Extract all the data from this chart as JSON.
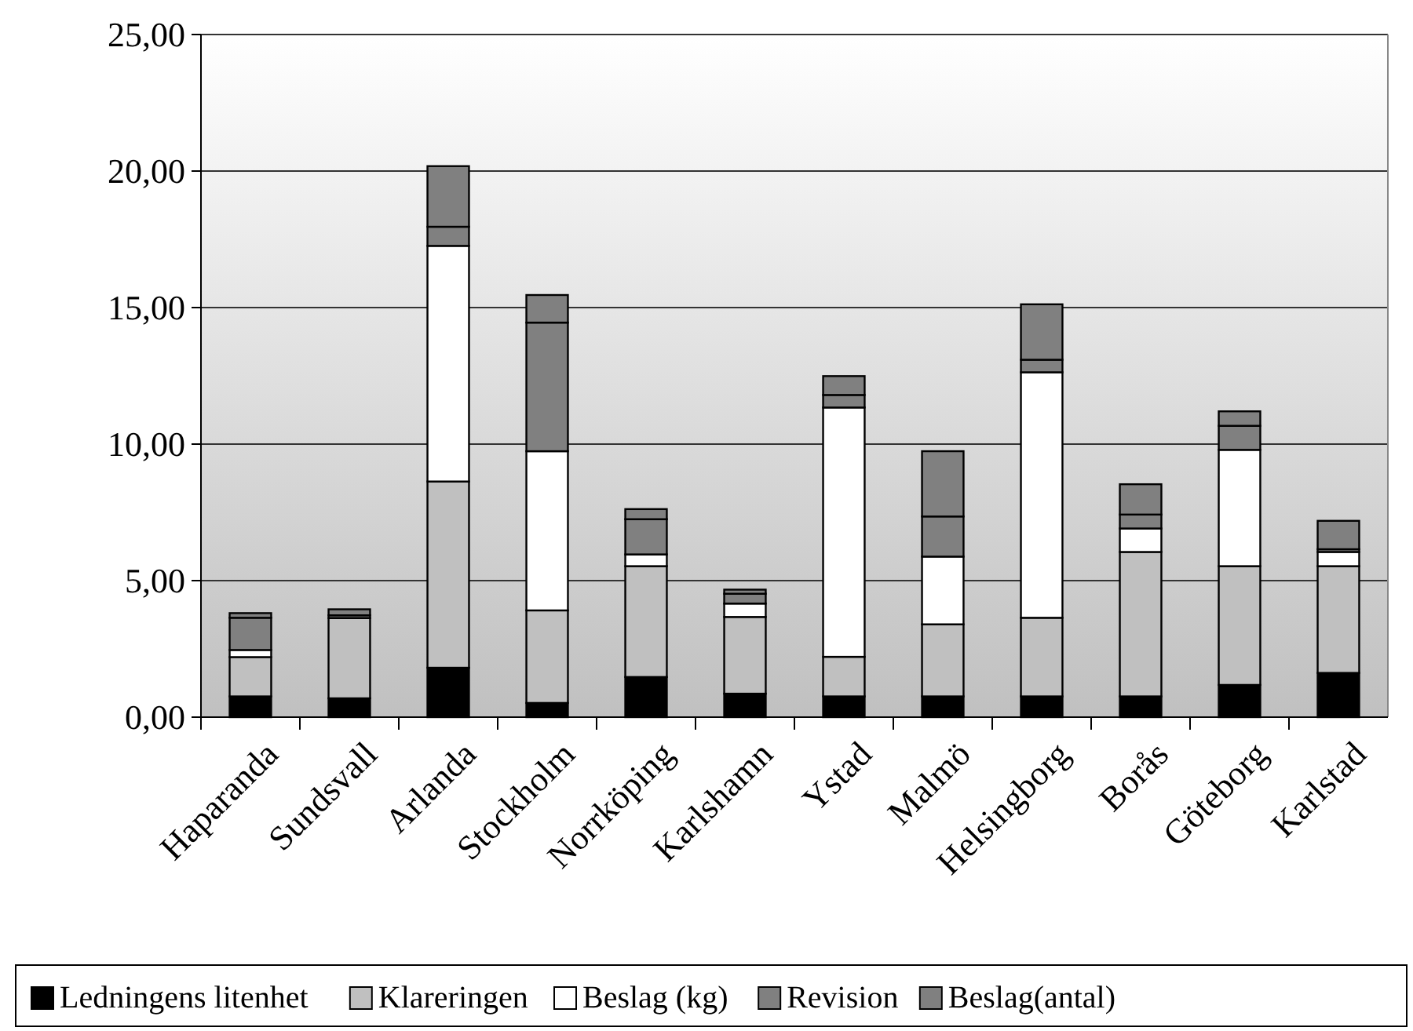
{
  "chart_data": {
    "type": "bar",
    "stacked": true,
    "categories": [
      "Haparanda",
      "Sundsvall",
      "Arlanda",
      "Stockholm",
      "Norrköping",
      "Karlshamn",
      "Ystad",
      "Malmö",
      "Helsingborg",
      "Borås",
      "Göteborg",
      "Karlstad"
    ],
    "series": [
      {
        "name": "Ledningens litenhet",
        "color": "#000000",
        "values": [
          0.76,
          0.69,
          1.81,
          0.52,
          1.47,
          0.86,
          0.76,
          0.76,
          0.76,
          0.76,
          1.18,
          1.62
        ]
      },
      {
        "name": "Klareringen",
        "color": "#c0c0c0",
        "values": [
          1.44,
          2.94,
          6.82,
          3.39,
          4.06,
          2.81,
          1.45,
          2.64,
          2.88,
          5.29,
          4.35,
          3.91
        ]
      },
      {
        "name": "Beslag (kg)",
        "color": "#ffffff",
        "values": [
          0.26,
          null,
          8.63,
          5.83,
          0.43,
          0.49,
          9.13,
          2.48,
          8.99,
          0.86,
          4.26,
          0.52
        ]
      },
      {
        "name": "Revision",
        "color": "#808080",
        "values": [
          1.18,
          0.1,
          0.7,
          4.71,
          1.29,
          0.36,
          0.46,
          1.47,
          0.46,
          0.51,
          0.88,
          0.1
        ]
      },
      {
        "name": "Beslag(antal)",
        "color": "#808080",
        "values": [
          0.17,
          0.22,
          2.22,
          1.01,
          0.37,
          0.15,
          0.69,
          2.39,
          2.03,
          1.11,
          0.53,
          1.04
        ]
      }
    ],
    "ylim": [
      0,
      25
    ],
    "yticks": [
      {
        "value": 0,
        "label": "0,00"
      },
      {
        "value": 5,
        "label": "5,00"
      },
      {
        "value": 10,
        "label": "10,00"
      },
      {
        "value": 15,
        "label": "15,00"
      },
      {
        "value": 20,
        "label": "20,00"
      },
      {
        "value": 25,
        "label": "25,00"
      }
    ],
    "grid": "y",
    "legend": "bottom"
  }
}
